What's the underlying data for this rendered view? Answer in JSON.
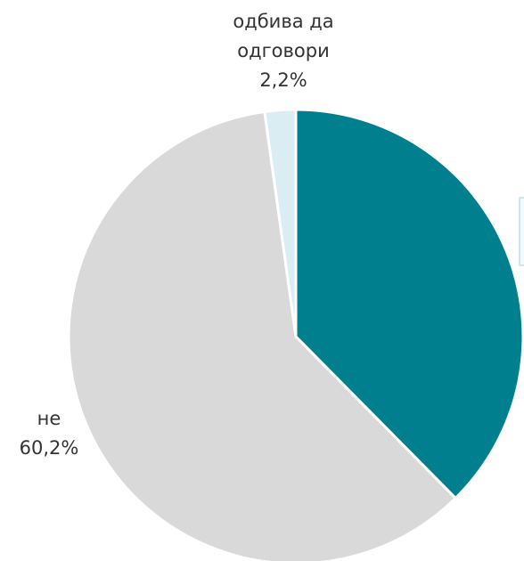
{
  "chart_data": {
    "type": "pie",
    "categories": [
      null,
      "не",
      "одбива да одговори"
    ],
    "values": [
      37.6,
      60.2,
      2.2
    ],
    "value_labels": [
      null,
      "60,2%",
      "2,2%"
    ],
    "colors": [
      "#007f8f",
      "#d9d9d9",
      "#daedf3"
    ]
  }
}
